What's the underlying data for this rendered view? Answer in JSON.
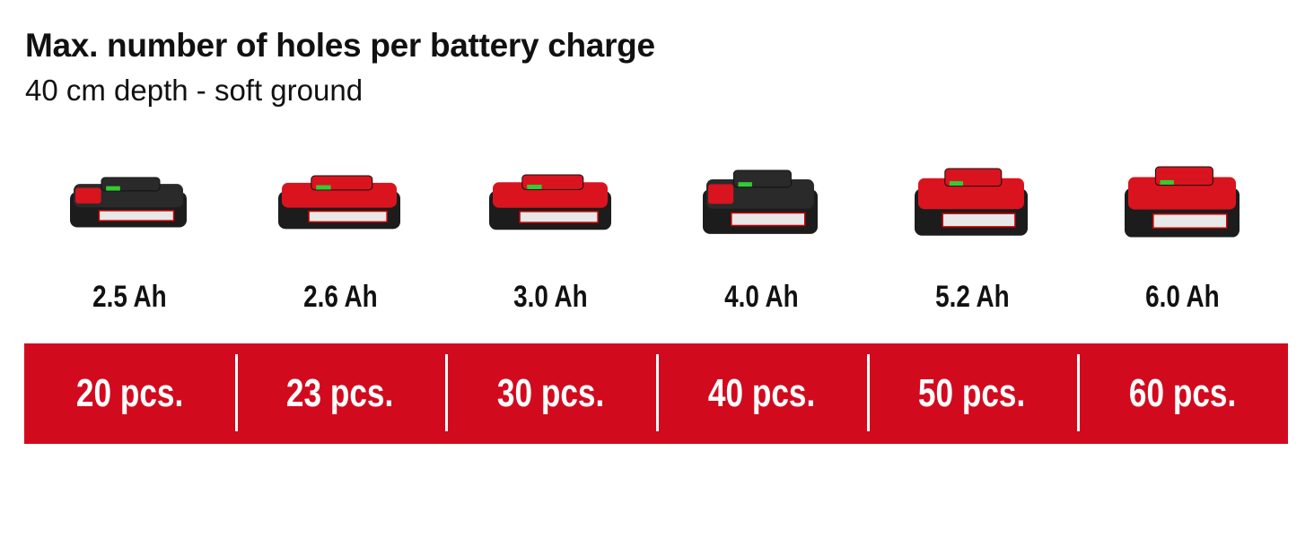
{
  "header": {
    "title": "Max. number of holes per battery charge",
    "subtitle": "40 cm depth - soft ground"
  },
  "brand_color": "#d20a1e",
  "batteries": [
    {
      "capacity": "2.5 Ah",
      "holes": "20 pcs.",
      "style": "black-top"
    },
    {
      "capacity": "2.6 Ah",
      "holes": "23 pcs.",
      "style": "red-top"
    },
    {
      "capacity": "3.0 Ah",
      "holes": "30 pcs.",
      "style": "red-top"
    },
    {
      "capacity": "4.0 Ah",
      "holes": "40 pcs.",
      "style": "black-top"
    },
    {
      "capacity": "5.2 Ah",
      "holes": "50 pcs.",
      "style": "red-top"
    },
    {
      "capacity": "6.0 Ah",
      "holes": "60 pcs.",
      "style": "red-top"
    }
  ]
}
